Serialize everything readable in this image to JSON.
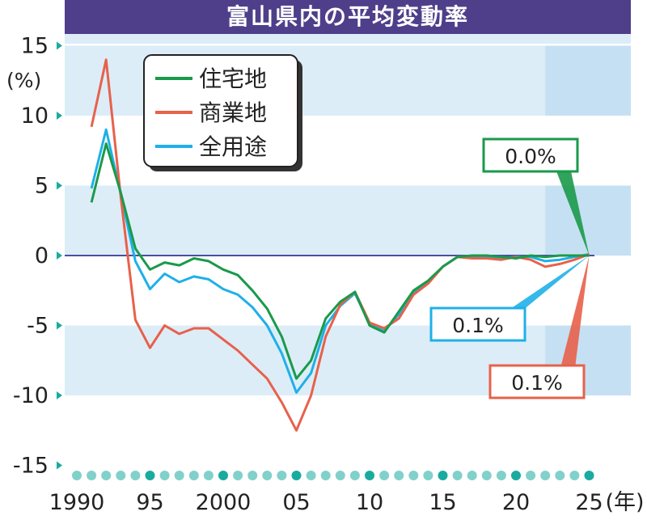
{
  "chart_data": {
    "type": "line",
    "title": "富山県内の平均変動率",
    "ylabel": "(%)",
    "xunit": "(年)",
    "ylim": [
      -15,
      15
    ],
    "xlim": [
      1990,
      2025
    ],
    "yticks": [
      15,
      10,
      5,
      0,
      -5,
      -10,
      -15
    ],
    "xticks": [
      {
        "x": 1990,
        "label": "1990"
      },
      {
        "x": 1995,
        "label": "95"
      },
      {
        "x": 2000,
        "label": "2000"
      },
      {
        "x": 2005,
        "label": "05"
      },
      {
        "x": 2010,
        "label": "10"
      },
      {
        "x": 2015,
        "label": "15"
      },
      {
        "x": 2020,
        "label": "20"
      },
      {
        "x": 2025,
        "label": "25"
      }
    ],
    "x": [
      1991,
      1992,
      1993,
      1994,
      1995,
      1996,
      1997,
      1998,
      1999,
      2000,
      2001,
      2002,
      2003,
      2004,
      2005,
      2006,
      2007,
      2008,
      2009,
      2010,
      2011,
      2012,
      2013,
      2014,
      2015,
      2016,
      2017,
      2018,
      2019,
      2020,
      2021,
      2022,
      2023,
      2024,
      2025
    ],
    "series": [
      {
        "name": "住宅地",
        "color": "#1a9a4a",
        "values": [
          3.8,
          8.0,
          4.5,
          0.5,
          -1.0,
          -0.5,
          -0.7,
          -0.2,
          -0.4,
          -1.0,
          -1.4,
          -2.5,
          -3.8,
          -5.8,
          -8.8,
          -7.5,
          -4.5,
          -3.3,
          -2.6,
          -5.0,
          -5.5,
          -4.0,
          -2.5,
          -1.8,
          -0.8,
          -0.1,
          0.0,
          0.0,
          -0.1,
          -0.2,
          0.0,
          -0.1,
          0.0,
          0.0,
          0.0
        ]
      },
      {
        "name": "商業地",
        "color": "#e8614a",
        "values": [
          9.2,
          14.0,
          4.2,
          -4.6,
          -6.6,
          -5.0,
          -5.6,
          -5.2,
          -5.2,
          -6.0,
          -6.8,
          -7.8,
          -8.8,
          -10.5,
          -12.5,
          -10.0,
          -5.8,
          -3.5,
          -2.6,
          -4.8,
          -5.2,
          -4.5,
          -2.8,
          -2.0,
          -0.8,
          -0.1,
          -0.2,
          -0.2,
          -0.3,
          -0.1,
          -0.3,
          -0.8,
          -0.6,
          -0.3,
          0.1
        ]
      },
      {
        "name": "全用途",
        "color": "#1fb0e8",
        "values": [
          4.8,
          9.0,
          4.4,
          -0.4,
          -2.4,
          -1.3,
          -1.9,
          -1.5,
          -1.7,
          -2.4,
          -2.8,
          -3.7,
          -5.0,
          -7.0,
          -9.8,
          -8.4,
          -5.0,
          -3.6,
          -2.7,
          -4.9,
          -5.4,
          -4.2,
          -2.6,
          -1.9,
          -0.8,
          -0.1,
          -0.1,
          -0.1,
          -0.2,
          -0.1,
          -0.1,
          -0.4,
          -0.3,
          -0.1,
          0.1
        ]
      }
    ],
    "callouts": [
      {
        "text": "0.0%",
        "color": "#1a9a4a"
      },
      {
        "text": "0.1%",
        "color": "#1fb0e8"
      },
      {
        "text": "0.1%",
        "color": "#e8614a"
      }
    ],
    "colors": {
      "band_light": "#dcedf8",
      "band_dark": "#c6e0f3",
      "zero_line": "#4d4da0",
      "tick": "#1aaba0",
      "title_bg": "#4f3f8a"
    }
  }
}
